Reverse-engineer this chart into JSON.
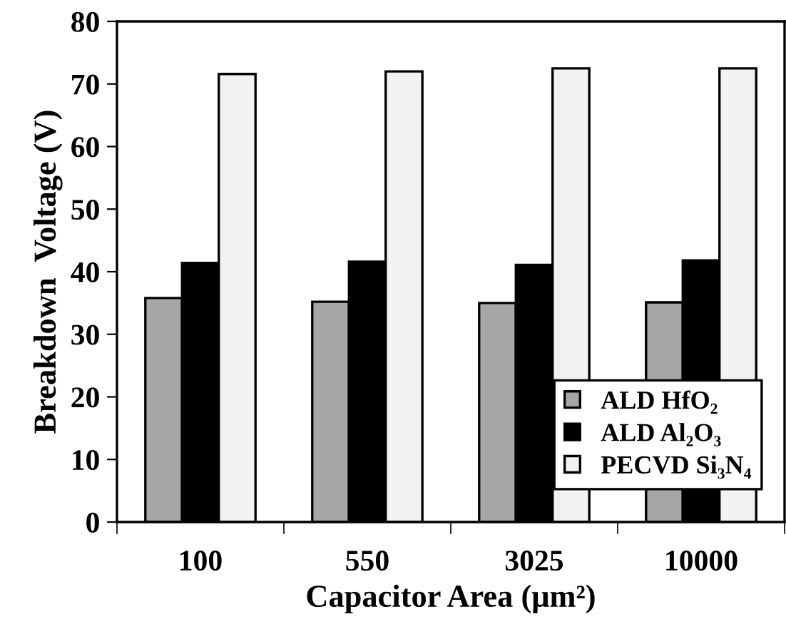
{
  "chart_data": {
    "type": "bar",
    "xlabel": "Capacitor Area (μm²)",
    "ylabel": "Breakdown  Voltage (V)",
    "categories": [
      "100",
      "550",
      "3025",
      "10000"
    ],
    "series": [
      {
        "name": "ALD HfO₂",
        "color": "#a6a6a6",
        "values": [
          35.8,
          35.2,
          35.0,
          35.1
        ]
      },
      {
        "name": "ALD Al₂O₃",
        "color": "#000000",
        "values": [
          41.4,
          41.6,
          41.1,
          41.8
        ]
      },
      {
        "name": "PECVD Si₃N₄",
        "color": "#f2f2f2",
        "values": [
          71.6,
          72.0,
          72.5,
          72.5
        ]
      }
    ],
    "ylim": [
      0,
      80
    ],
    "yticks": [
      0,
      10,
      20,
      30,
      40,
      50,
      60,
      70,
      80
    ],
    "grid": false,
    "legend": "bottom right"
  }
}
